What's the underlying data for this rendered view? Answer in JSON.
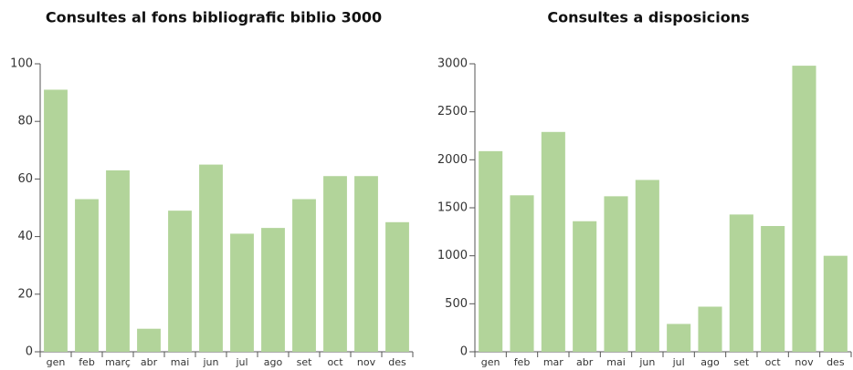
{
  "chart_data": [
    {
      "type": "bar",
      "title": "Consultes al fons bibliografic biblio 3000",
      "categories": [
        "gen",
        "feb",
        "març",
        "abr",
        "mai",
        "jun",
        "jul",
        "ago",
        "set",
        "oct",
        "nov",
        "des"
      ],
      "values": [
        91,
        53,
        63,
        8,
        49,
        65,
        41,
        43,
        53,
        61,
        61,
        45
      ],
      "color": "#b2d49a",
      "ylim": [
        0,
        100
      ],
      "yticks": [
        0,
        20,
        40,
        60,
        80,
        100
      ],
      "grid": false
    },
    {
      "type": "bar",
      "title": "Consultes a disposicions",
      "categories": [
        "gen",
        "feb",
        "mar",
        "abr",
        "mai",
        "jun",
        "jul",
        "ago",
        "set",
        "oct",
        "nov",
        "des"
      ],
      "values": [
        2090,
        1630,
        2290,
        1360,
        1620,
        1790,
        290,
        470,
        1430,
        1310,
        2980,
        1000
      ],
      "color": "#b2d49a",
      "ylim": [
        0,
        3000
      ],
      "yticks": [
        0,
        500,
        1000,
        1500,
        2000,
        2500,
        3000
      ],
      "grid": false
    }
  ]
}
